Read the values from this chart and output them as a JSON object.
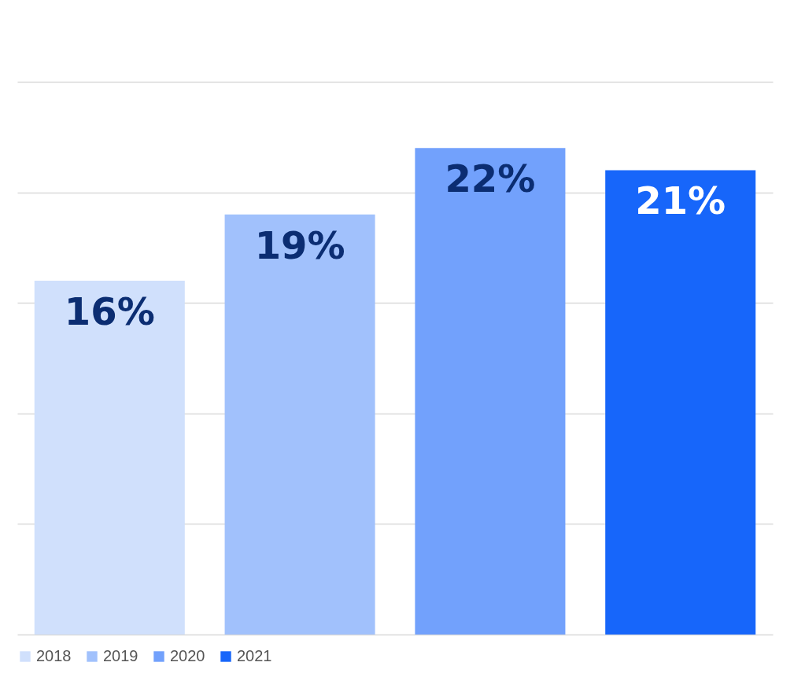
{
  "chart_data": {
    "type": "bar",
    "categories": [
      null
    ],
    "series": [
      {
        "name": "2018",
        "color": "#d0e0fc",
        "values": [
          16
        ],
        "value_labels": [
          "16%"
        ]
      },
      {
        "name": "2019",
        "color": "#a1c1fc",
        "values": [
          19
        ],
        "value_labels": [
          "19%"
        ]
      },
      {
        "name": "2020",
        "color": "#72a1fc",
        "values": [
          22
        ],
        "value_labels": [
          "22%"
        ]
      },
      {
        "name": "2021",
        "color": "#1766fa",
        "values": [
          21
        ],
        "value_labels": [
          "21%"
        ]
      }
    ],
    "ylim": [
      0,
      25
    ],
    "yticks": [
      {
        "value": 0,
        "label": null
      },
      {
        "value": 5,
        "label": null
      },
      {
        "value": 10,
        "label": null
      },
      {
        "value": 15,
        "label": null
      },
      {
        "value": 20,
        "label": null
      },
      {
        "value": 25,
        "label": null
      }
    ],
    "grid": true,
    "legend": "bottom",
    "tick_labels": false
  }
}
